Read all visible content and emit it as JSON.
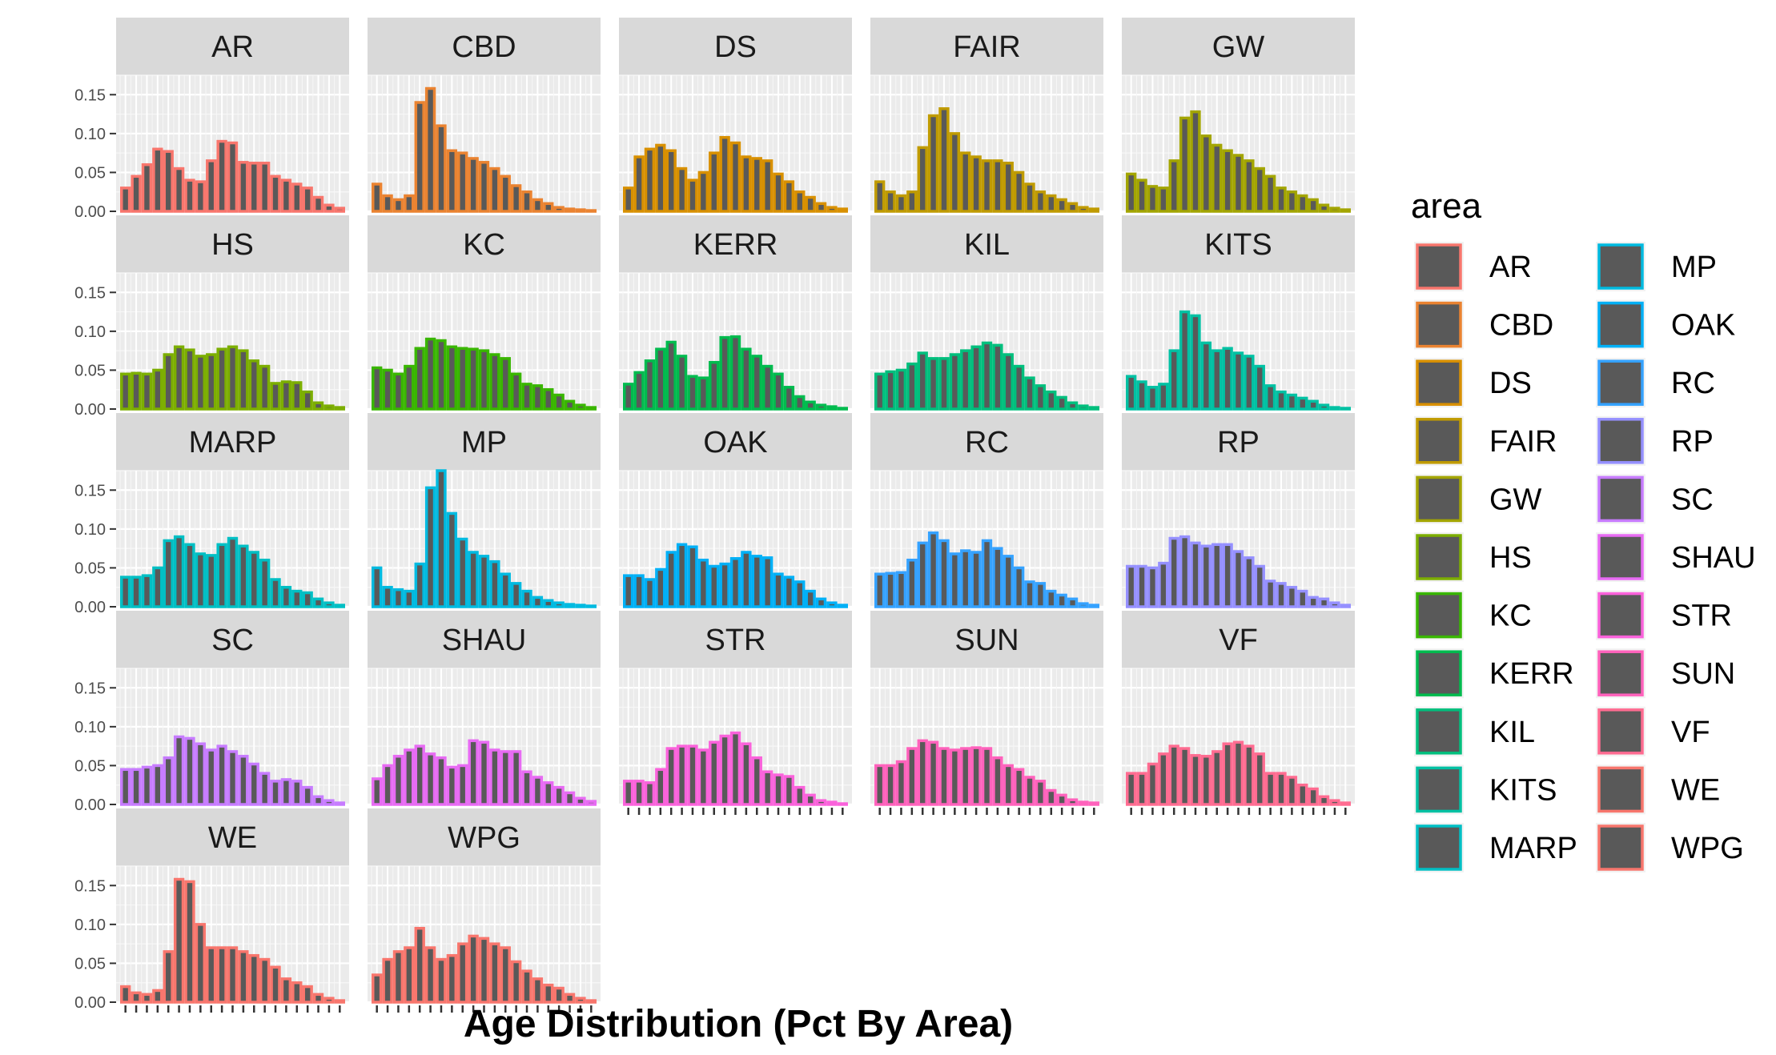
{
  "chart_data": {
    "type": "bar",
    "facet_layout": "wrap, 5 columns",
    "xlabel": "Age Distribution (Pct By Area)",
    "ylabel": "",
    "ylim": [
      0,
      0.175
    ],
    "yticks": [
      0.0,
      0.05,
      0.1,
      0.15
    ],
    "ytick_labels": [
      "0.00",
      "0.05",
      "0.10",
      "0.15"
    ],
    "x_tick_labels_visible": false,
    "bin_count": 21,
    "grid": true,
    "bar_fill": "#595959",
    "legend": {
      "title": "area",
      "position": "right",
      "columns": 2
    },
    "series": [
      {
        "name": "AR",
        "color": "#F8766D",
        "values": [
          0.03,
          0.045,
          0.06,
          0.08,
          0.077,
          0.055,
          0.04,
          0.038,
          0.065,
          0.09,
          0.088,
          0.063,
          0.062,
          0.062,
          0.045,
          0.04,
          0.035,
          0.03,
          0.018,
          0.008,
          0.004
        ]
      },
      {
        "name": "CBD",
        "color": "#EA8331",
        "values": [
          0.035,
          0.02,
          0.015,
          0.02,
          0.14,
          0.158,
          0.11,
          0.078,
          0.075,
          0.068,
          0.063,
          0.055,
          0.045,
          0.033,
          0.025,
          0.015,
          0.01,
          0.005,
          0.003,
          0.002,
          0.001
        ]
      },
      {
        "name": "DS",
        "color": "#D89000",
        "values": [
          0.03,
          0.07,
          0.08,
          0.085,
          0.078,
          0.055,
          0.04,
          0.05,
          0.075,
          0.095,
          0.088,
          0.07,
          0.068,
          0.065,
          0.048,
          0.038,
          0.025,
          0.018,
          0.01,
          0.005,
          0.003
        ]
      },
      {
        "name": "FAIR",
        "color": "#C09B00",
        "values": [
          0.038,
          0.025,
          0.02,
          0.025,
          0.082,
          0.123,
          0.132,
          0.1,
          0.075,
          0.07,
          0.065,
          0.065,
          0.062,
          0.05,
          0.035,
          0.025,
          0.02,
          0.015,
          0.01,
          0.005,
          0.003
        ]
      },
      {
        "name": "GW",
        "color": "#A3A500",
        "values": [
          0.048,
          0.04,
          0.032,
          0.03,
          0.065,
          0.12,
          0.128,
          0.097,
          0.085,
          0.078,
          0.072,
          0.065,
          0.055,
          0.045,
          0.03,
          0.025,
          0.02,
          0.015,
          0.008,
          0.004,
          0.002
        ]
      },
      {
        "name": "HS",
        "color": "#7CAE00",
        "values": [
          0.045,
          0.046,
          0.045,
          0.05,
          0.07,
          0.08,
          0.076,
          0.068,
          0.07,
          0.077,
          0.08,
          0.075,
          0.062,
          0.055,
          0.033,
          0.035,
          0.034,
          0.022,
          0.008,
          0.004,
          0.002
        ]
      },
      {
        "name": "KC",
        "color": "#39B600",
        "values": [
          0.053,
          0.05,
          0.045,
          0.055,
          0.078,
          0.09,
          0.088,
          0.08,
          0.078,
          0.077,
          0.075,
          0.07,
          0.065,
          0.045,
          0.032,
          0.03,
          0.025,
          0.018,
          0.01,
          0.005,
          0.002
        ]
      },
      {
        "name": "KERR",
        "color": "#00BB4E",
        "values": [
          0.032,
          0.047,
          0.062,
          0.077,
          0.086,
          0.068,
          0.042,
          0.04,
          0.06,
          0.092,
          0.093,
          0.077,
          0.068,
          0.055,
          0.045,
          0.028,
          0.016,
          0.009,
          0.005,
          0.003,
          0.001
        ]
      },
      {
        "name": "KIL",
        "color": "#00BF7D",
        "values": [
          0.045,
          0.048,
          0.05,
          0.058,
          0.072,
          0.065,
          0.065,
          0.07,
          0.075,
          0.08,
          0.085,
          0.082,
          0.07,
          0.055,
          0.04,
          0.03,
          0.022,
          0.015,
          0.008,
          0.004,
          0.002
        ]
      },
      {
        "name": "KITS",
        "color": "#00C1A3",
        "values": [
          0.042,
          0.035,
          0.028,
          0.032,
          0.075,
          0.125,
          0.12,
          0.085,
          0.075,
          0.078,
          0.072,
          0.068,
          0.055,
          0.03,
          0.022,
          0.018,
          0.014,
          0.01,
          0.005,
          0.002,
          0.001
        ]
      },
      {
        "name": "MARP",
        "color": "#00BFC4",
        "values": [
          0.038,
          0.038,
          0.04,
          0.05,
          0.085,
          0.09,
          0.08,
          0.068,
          0.066,
          0.08,
          0.088,
          0.078,
          0.07,
          0.06,
          0.035,
          0.025,
          0.02,
          0.018,
          0.01,
          0.005,
          0.002
        ]
      },
      {
        "name": "MP",
        "color": "#00BAE0",
        "values": [
          0.05,
          0.025,
          0.022,
          0.02,
          0.055,
          0.153,
          0.175,
          0.12,
          0.087,
          0.07,
          0.065,
          0.058,
          0.042,
          0.03,
          0.02,
          0.012,
          0.008,
          0.005,
          0.003,
          0.002,
          0.001
        ]
      },
      {
        "name": "OAK",
        "color": "#00B0F6",
        "values": [
          0.04,
          0.04,
          0.035,
          0.048,
          0.07,
          0.08,
          0.077,
          0.06,
          0.052,
          0.055,
          0.062,
          0.07,
          0.065,
          0.063,
          0.042,
          0.038,
          0.032,
          0.02,
          0.01,
          0.005,
          0.002
        ]
      },
      {
        "name": "RC",
        "color": "#35A2FF",
        "values": [
          0.042,
          0.043,
          0.044,
          0.06,
          0.082,
          0.095,
          0.085,
          0.068,
          0.072,
          0.07,
          0.085,
          0.075,
          0.065,
          0.05,
          0.032,
          0.03,
          0.02,
          0.015,
          0.01,
          0.004,
          0.002
        ]
      },
      {
        "name": "RP",
        "color": "#9590FF",
        "values": [
          0.052,
          0.052,
          0.05,
          0.056,
          0.088,
          0.09,
          0.082,
          0.078,
          0.08,
          0.08,
          0.071,
          0.063,
          0.052,
          0.033,
          0.03,
          0.025,
          0.02,
          0.012,
          0.01,
          0.005,
          0.002
        ]
      },
      {
        "name": "SC",
        "color": "#C77CFF",
        "values": [
          0.045,
          0.045,
          0.048,
          0.05,
          0.06,
          0.087,
          0.085,
          0.078,
          0.07,
          0.075,
          0.068,
          0.062,
          0.052,
          0.04,
          0.03,
          0.032,
          0.03,
          0.022,
          0.01,
          0.005,
          0.002
        ]
      },
      {
        "name": "SHAU",
        "color": "#E76BF3",
        "values": [
          0.033,
          0.05,
          0.062,
          0.07,
          0.075,
          0.065,
          0.06,
          0.048,
          0.05,
          0.082,
          0.08,
          0.07,
          0.068,
          0.068,
          0.042,
          0.035,
          0.028,
          0.022,
          0.015,
          0.008,
          0.004
        ]
      },
      {
        "name": "STR",
        "color": "#FA62DB",
        "values": [
          0.03,
          0.03,
          0.028,
          0.045,
          0.072,
          0.075,
          0.075,
          0.07,
          0.08,
          0.088,
          0.092,
          0.078,
          0.06,
          0.042,
          0.038,
          0.036,
          0.022,
          0.012,
          0.005,
          0.003,
          0.001
        ]
      },
      {
        "name": "SUN",
        "color": "#FF62BC",
        "values": [
          0.05,
          0.05,
          0.055,
          0.072,
          0.082,
          0.08,
          0.072,
          0.07,
          0.072,
          0.073,
          0.072,
          0.06,
          0.05,
          0.045,
          0.035,
          0.03,
          0.018,
          0.012,
          0.006,
          0.003,
          0.002
        ]
      },
      {
        "name": "VF",
        "color": "#FF6C91",
        "values": [
          0.04,
          0.04,
          0.052,
          0.065,
          0.075,
          0.072,
          0.063,
          0.062,
          0.068,
          0.078,
          0.08,
          0.075,
          0.065,
          0.04,
          0.04,
          0.035,
          0.025,
          0.02,
          0.01,
          0.005,
          0.002
        ]
      },
      {
        "name": "WE",
        "color": "#F8766D",
        "values": [
          0.02,
          0.012,
          0.01,
          0.015,
          0.065,
          0.158,
          0.155,
          0.1,
          0.07,
          0.07,
          0.07,
          0.065,
          0.06,
          0.055,
          0.045,
          0.03,
          0.025,
          0.02,
          0.01,
          0.005,
          0.002
        ]
      },
      {
        "name": "WPG",
        "color": "#F8766D",
        "values": [
          0.035,
          0.055,
          0.065,
          0.07,
          0.095,
          0.07,
          0.055,
          0.06,
          0.075,
          0.085,
          0.082,
          0.075,
          0.07,
          0.052,
          0.04,
          0.03,
          0.022,
          0.018,
          0.01,
          0.005,
          0.002
        ]
      }
    ]
  }
}
